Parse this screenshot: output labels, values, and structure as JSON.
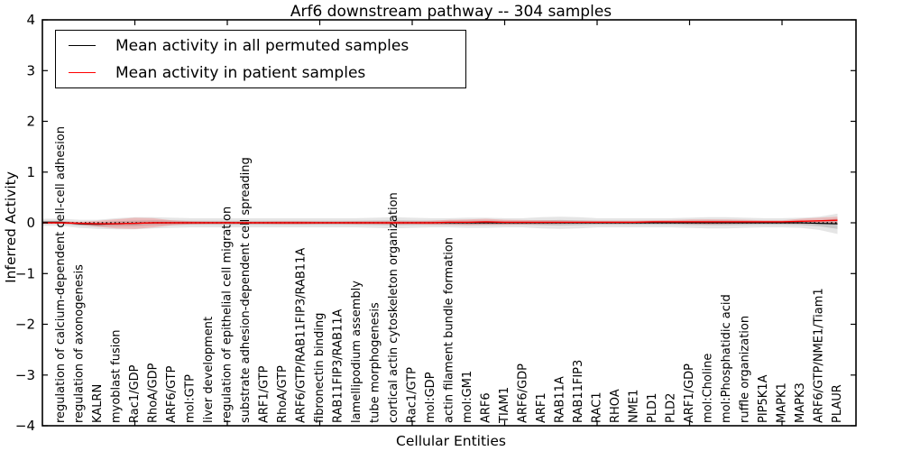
{
  "title": "Arf6 downstream pathway -- 304 samples",
  "axes": {
    "ylabel": "Inferred Activity",
    "xlabel": "Cellular Entities",
    "ytick_values": [
      4,
      3,
      2,
      1,
      0,
      -1,
      -2,
      -3,
      -4
    ],
    "ytick_labels": [
      "4",
      "3",
      "2",
      "1",
      "0",
      "−1",
      "−2",
      "−3",
      "−4"
    ],
    "x_major_ticks": [
      5,
      10,
      15,
      20,
      25,
      30,
      35,
      40
    ]
  },
  "legend": {
    "items": [
      {
        "label": "Mean activity in all permuted samples",
        "color": "#000000"
      },
      {
        "label": "Mean activity in patient samples",
        "color": "#ff0000"
      }
    ]
  },
  "chart_data": {
    "type": "line",
    "title": "Arf6 downstream pathway -- 304 samples",
    "xlabel": "Cellular Entities",
    "ylabel": "Inferred Activity",
    "ylim": [
      -4,
      4
    ],
    "xlim": [
      0,
      44
    ],
    "grid": false,
    "legend_position": "upper left",
    "zero_line": {
      "style": "dotted",
      "color": "#000000",
      "y": 0
    },
    "categories": [
      "regulation of calcium-dependent cell-cell adhesion",
      "regulation of axonogenesis",
      "KALRN",
      "myoblast fusion",
      "Rac1/GDP",
      "RhoA/GDP",
      "ARF6/GTP",
      "mol:GTP",
      "liver development",
      "regulation of epithelial cell migration",
      "substrate adhesion-dependent cell spreading",
      "ARF1/GTP",
      "RhoA/GTP",
      "ARF6/GTP/RAB11FIP3/RAB11A",
      "fibronectin binding",
      "RAB11FIP3/RAB11A",
      "lamellipodium assembly",
      "tube morphogenesis",
      "cortical actin cytoskeleton organization",
      "Rac1/GTP",
      "mol:GDP",
      "actin filament bundle formation",
      "mol:GM1",
      "ARF6",
      "TIAM1",
      "ARF6/GDP",
      "ARF1",
      "RAB11A",
      "RAB11FIP3",
      "RAC1",
      "RHOA",
      "NME1",
      "PLD1",
      "PLD2",
      "ARF1/GDP",
      "mol:Choline",
      "mol:Phosphatidic acid",
      "ruffle organization",
      "PIP5K1A",
      "MAPK1",
      "MAPK3",
      "ARF6/GTP/NME1/Tiam1",
      "PLAUR"
    ],
    "series": [
      {
        "name": "Mean activity in all permuted samples",
        "color": "#000000",
        "values": [
          0.01,
          -0.02,
          -0.03,
          -0.02,
          -0.01,
          0,
          0,
          0,
          0,
          0,
          0,
          0,
          0,
          0,
          0,
          0,
          0,
          0,
          0,
          0,
          0,
          0,
          0,
          0,
          0,
          0,
          0,
          0,
          0,
          0,
          0,
          0,
          0,
          0,
          0,
          0,
          0,
          0,
          0,
          0,
          0,
          -0.01,
          -0.02
        ],
        "band_outer": [
          0.07,
          0.08,
          0.09,
          0.11,
          0.12,
          0.11,
          0.1,
          0.09,
          0.09,
          0.09,
          0.09,
          0.09,
          0.09,
          0.09,
          0.09,
          0.09,
          0.09,
          0.1,
          0.11,
          0.1,
          0.09,
          0.09,
          0.1,
          0.1,
          0.09,
          0.09,
          0.11,
          0.12,
          0.11,
          0.09,
          0.09,
          0.09,
          0.09,
          0.09,
          0.1,
          0.11,
          0.11,
          0.1,
          0.09,
          0.09,
          0.1,
          0.13,
          0.2
        ],
        "band_inner": [
          0.03,
          0.035,
          0.04,
          0.05,
          0.055,
          0.05,
          0.045,
          0.04,
          0.04,
          0.04,
          0.04,
          0.04,
          0.04,
          0.04,
          0.04,
          0.04,
          0.04,
          0.045,
          0.05,
          0.045,
          0.04,
          0.04,
          0.045,
          0.045,
          0.04,
          0.04,
          0.05,
          0.055,
          0.05,
          0.04,
          0.04,
          0.04,
          0.04,
          0.04,
          0.045,
          0.05,
          0.05,
          0.045,
          0.04,
          0.04,
          0.045,
          0.06,
          0.1
        ]
      },
      {
        "name": "Mean activity in patient samples",
        "color": "#ff0000",
        "values": [
          0,
          -0.01,
          -0.02,
          -0.02,
          -0.01,
          0,
          0,
          0,
          0,
          0,
          0,
          0,
          0,
          0,
          0,
          0,
          0,
          0,
          0,
          0,
          0,
          0.01,
          0.01,
          0.02,
          0.01,
          0.01,
          0.01,
          0.01,
          0.01,
          0.01,
          0.01,
          0.01,
          0.02,
          0.02,
          0.02,
          0.02,
          0.02,
          0.02,
          0.02,
          0.02,
          0.03,
          0.04,
          0.05
        ],
        "band": [
          0.02,
          0.03,
          0.06,
          0.09,
          0.11,
          0.09,
          0.05,
          0.03,
          0.025,
          0.025,
          0.025,
          0.025,
          0.03,
          0.03,
          0.025,
          0.025,
          0.03,
          0.03,
          0.035,
          0.03,
          0.04,
          0.05,
          0.055,
          0.06,
          0.05,
          0.045,
          0.04,
          0.035,
          0.03,
          0.03,
          0.03,
          0.03,
          0.03,
          0.035,
          0.045,
          0.05,
          0.045,
          0.04,
          0.03,
          0.03,
          0.05,
          0.06,
          0.07
        ]
      }
    ],
    "band_colors": {
      "permuted_outer": "rgba(0,0,0,0.10)",
      "permuted_inner": "rgba(0,0,0,0.13)",
      "patient": "rgba(255,0,0,0.18)"
    }
  }
}
